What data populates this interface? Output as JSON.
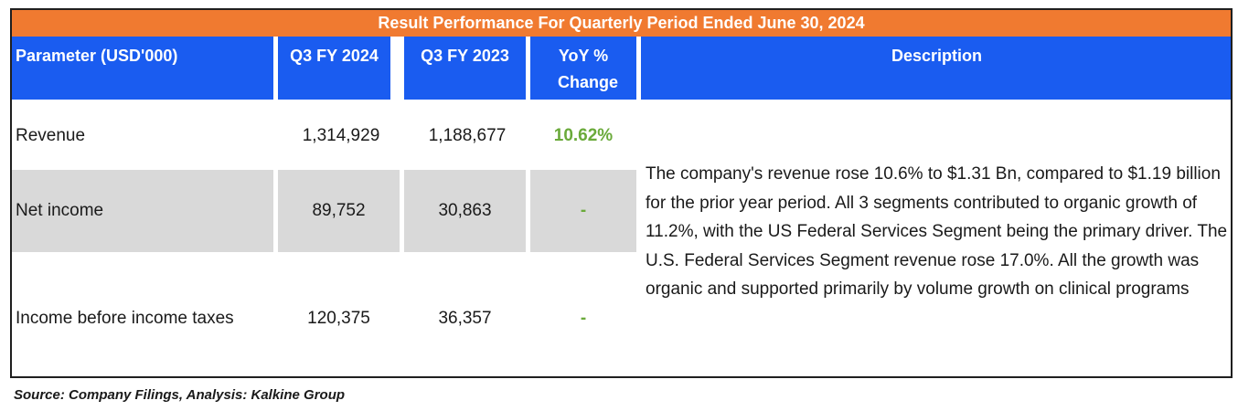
{
  "title": "Result Performance For Quarterly Period Ended June 30, 2024",
  "headers": {
    "parameter": "Parameter  (USD'000)",
    "q3_2024": "Q3 FY 2024",
    "q3_2023": "Q3 FY 2023",
    "yoy": "YoY % Change",
    "description": "Description"
  },
  "rows": [
    {
      "parameter": "Revenue",
      "q3_2024": "1,314,929",
      "q3_2023": "1,188,677",
      "yoy": "10.62%"
    },
    {
      "parameter": "Net income",
      "q3_2024": "89,752",
      "q3_2023": "30,863",
      "yoy": "-"
    },
    {
      "parameter": "Income before income taxes",
      "q3_2024": "120,375",
      "q3_2023": "36,357",
      "yoy": "-"
    }
  ],
  "description": "The company's revenue rose 10.6% to $1.31 Bn, compared to $1.19 billion for the prior year period. All 3 segments contributed to organic growth of 11.2%, with the US Federal Services Segment being the primary driver. The U.S. Federal Services Segment revenue rose 17.0%. All the growth was organic and supported primarily by volume growth on clinical programs",
  "source": "Source: Company Filings, Analysis: Kalkine Group",
  "colors": {
    "title_bar": "#f07a30",
    "header": "#1a5cf0",
    "shade": "#d9d9d9",
    "positive": "#6aaa3a"
  }
}
